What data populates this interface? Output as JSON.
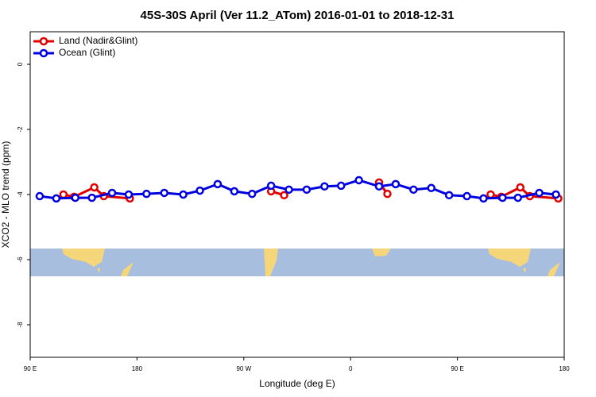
{
  "chart_data": {
    "type": "line",
    "title": "45S-30S April (Ver 11.2_ATom)   2016-01-01 to 2018-12-31",
    "x_label": "Longitude (deg E)",
    "y_label": "XCO2 - MLO trend (ppm)",
    "xlim": [
      90,
      540
    ],
    "xticks": [
      {
        "value": 90,
        "label": "90 E"
      },
      180,
      {
        "value": 270,
        "label": "90 W"
      },
      {
        "value": 360,
        "label": "0"
      },
      {
        "value": 450,
        "label": "90 E"
      },
      {
        "value": 540,
        "label": "180"
      }
    ],
    "ylim": [
      -9,
      1
    ],
    "yticks": [
      0,
      -2,
      -4,
      -6,
      -8
    ],
    "legend": "top-left",
    "series": [
      {
        "name": "Land (Nadir&Glint)",
        "color": "#e00000",
        "x": [
          118,
          127,
          144,
          152,
          174,
          null,
          293,
          304,
          null,
          384,
          391,
          null,
          478,
          487,
          503,
          511,
          535
        ],
        "values": [
          -4.0,
          -4.07,
          -3.78,
          -4.05,
          -4.12,
          null,
          -3.9,
          -4.02,
          null,
          -3.63,
          -3.98,
          null,
          -4.0,
          -4.07,
          -3.78,
          -4.05,
          -4.12
        ]
      },
      {
        "name": "Ocean (Glint)",
        "color": "#0000e0",
        "x": [
          98,
          112,
          128,
          142,
          159,
          173,
          188,
          203,
          219,
          233,
          248,
          262,
          277,
          293,
          308,
          323,
          338,
          352,
          367,
          384,
          398,
          413,
          428,
          443,
          458,
          472,
          488,
          501,
          519,
          533
        ],
        "values": [
          -4.05,
          -4.12,
          -4.1,
          -4.1,
          -3.95,
          -4.0,
          -3.98,
          -3.95,
          -4.0,
          -3.88,
          -3.68,
          -3.9,
          -3.98,
          -3.73,
          -3.85,
          -3.85,
          -3.75,
          -3.73,
          -3.56,
          -3.75,
          -3.68,
          -3.85,
          -3.8,
          -4.02,
          -4.05,
          -4.12,
          -4.1,
          -4.1,
          -3.95,
          -4.0
        ]
      }
    ]
  }
}
